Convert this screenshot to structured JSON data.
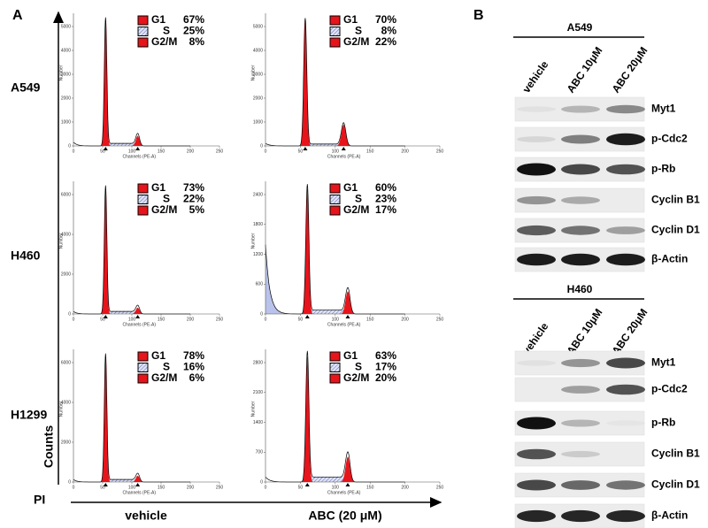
{
  "panel_a": {
    "label": "A",
    "y_axis_label": "Counts",
    "x_axis_label": "PI",
    "columns": [
      "vehicle",
      "ABC (20 μM)"
    ],
    "plot_y_label": "Number",
    "plot_x_label": "Channels (PE-A)",
    "plot_xticks": [
      0,
      50,
      100,
      150,
      200,
      250
    ],
    "rows": [
      {
        "cell_line": "A549",
        "plots": [
          {
            "legend": [
              {
                "phase": "G1",
                "percent": "67%"
              },
              {
                "phase": "S",
                "percent": "25%"
              },
              {
                "phase": "G2/M",
                "percent": "8%"
              }
            ],
            "yticks": [
              0,
              1000,
              2000,
              3000,
              4000,
              5000
            ]
          },
          {
            "legend": [
              {
                "phase": "G1",
                "percent": "70%"
              },
              {
                "phase": "S",
                "percent": "8%"
              },
              {
                "phase": "G2/M",
                "percent": "22%"
              }
            ],
            "yticks": [
              0,
              1000,
              2000,
              3000,
              4000,
              5000
            ]
          }
        ]
      },
      {
        "cell_line": "H460",
        "plots": [
          {
            "legend": [
              {
                "phase": "G1",
                "percent": "73%"
              },
              {
                "phase": "S",
                "percent": "22%"
              },
              {
                "phase": "G2/M",
                "percent": "5%"
              }
            ],
            "yticks": [
              0,
              2000,
              4000,
              6000
            ]
          },
          {
            "legend": [
              {
                "phase": "G1",
                "percent": "60%"
              },
              {
                "phase": "S",
                "percent": "23%"
              },
              {
                "phase": "G2/M",
                "percent": "17%"
              }
            ],
            "yticks": [
              0,
              600,
              1200,
              1800,
              2400
            ]
          }
        ]
      },
      {
        "cell_line": "H1299",
        "plots": [
          {
            "legend": [
              {
                "phase": "G1",
                "percent": "78%"
              },
              {
                "phase": "S",
                "percent": "16%"
              },
              {
                "phase": "G2/M",
                "percent": "6%"
              }
            ],
            "yticks": [
              0,
              2000,
              4000,
              6000
            ]
          },
          {
            "legend": [
              {
                "phase": "G1",
                "percent": "63%"
              },
              {
                "phase": "S",
                "percent": "17%"
              },
              {
                "phase": "G2/M",
                "percent": "20%"
              }
            ],
            "yticks": [
              0,
              700,
              1400,
              2100,
              2800
            ]
          }
        ]
      }
    ]
  },
  "panel_b": {
    "label": "B",
    "columns": [
      "vehicle",
      "ABC 10μM",
      "ABC 20μM"
    ],
    "blots": [
      {
        "cell_line": "A549",
        "proteins": [
          "Myt1",
          "p-Cdc2",
          "p-Rb",
          "Cyclin B1",
          "Cyclin D1",
          "β-Actin"
        ]
      },
      {
        "cell_line": "H460",
        "proteins": [
          "Myt1",
          "p-Cdc2",
          "p-Rb",
          "Cyclin B1",
          "Cyclin D1",
          "β-Actin"
        ]
      }
    ]
  }
}
